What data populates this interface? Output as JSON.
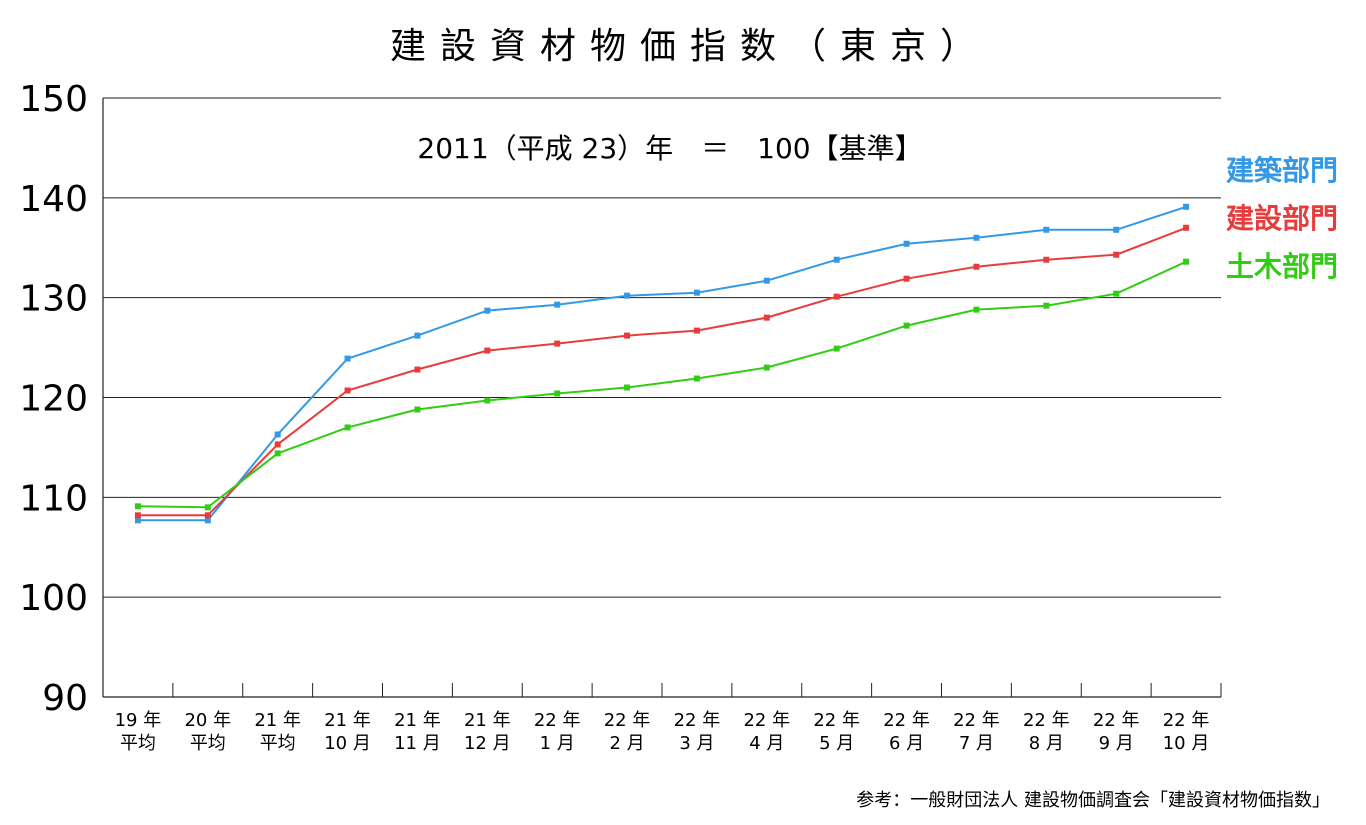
{
  "chart_data": {
    "type": "line",
    "title": "建設資材物価指数（東京）",
    "subtitle": "2011（平成 23）年　＝　100【基準】",
    "source": "参考：一般財団法人 建設物価調査会「建設資材物価指数」",
    "ylim": [
      90,
      150
    ],
    "yticks": [
      "90",
      "100",
      "110",
      "120",
      "130",
      "140",
      "150"
    ],
    "grid": true,
    "categories": [
      [
        "19 年",
        "平均"
      ],
      [
        "20 年",
        "平均"
      ],
      [
        "21 年",
        "平均"
      ],
      [
        "21 年",
        "10 月"
      ],
      [
        "21 年",
        "11 月"
      ],
      [
        "21 年",
        "12 月"
      ],
      [
        "22 年",
        "1 月"
      ],
      [
        "22 年",
        "2 月"
      ],
      [
        "22 年",
        "3 月"
      ],
      [
        "22 年",
        "4 月"
      ],
      [
        "22 年",
        "5 月"
      ],
      [
        "22 年",
        "6 月"
      ],
      [
        "22 年",
        "7 月"
      ],
      [
        "22 年",
        "8 月"
      ],
      [
        "22 年",
        "9 月"
      ],
      [
        "22 年",
        "10 月"
      ]
    ],
    "series": [
      {
        "name": "建築部門",
        "color": "#3399e6",
        "values": [
          107.7,
          107.7,
          116.3,
          123.9,
          126.2,
          128.7,
          129.3,
          130.2,
          130.5,
          131.7,
          133.8,
          135.4,
          136.0,
          136.8,
          136.8,
          139.1
        ]
      },
      {
        "name": "建設部門",
        "color": "#e83c3c",
        "values": [
          108.2,
          108.2,
          115.3,
          120.7,
          122.8,
          124.7,
          125.4,
          126.2,
          126.7,
          128.0,
          130.1,
          131.9,
          133.1,
          133.8,
          134.3,
          137.0
        ]
      },
      {
        "name": "土木部門",
        "color": "#33cc14",
        "values": [
          109.1,
          109.0,
          114.4,
          117.0,
          118.8,
          119.7,
          120.4,
          121.0,
          121.9,
          123.0,
          124.9,
          127.2,
          128.8,
          129.2,
          130.4,
          133.6
        ]
      }
    ],
    "legend_position": "right"
  }
}
